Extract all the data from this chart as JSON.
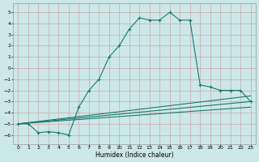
{
  "xlabel": "Humidex (Indice chaleur)",
  "bg_color": "#cce8e8",
  "grid_color": "#ccaaaa",
  "line_color": "#1a7a6e",
  "xlim": [
    -0.5,
    23.5
  ],
  "ylim": [
    -6.8,
    5.8
  ],
  "xticks": [
    0,
    1,
    2,
    3,
    4,
    5,
    6,
    7,
    8,
    9,
    10,
    11,
    12,
    13,
    14,
    15,
    16,
    17,
    18,
    19,
    20,
    21,
    22,
    23
  ],
  "yticks": [
    -6,
    -5,
    -4,
    -3,
    -2,
    -1,
    0,
    1,
    2,
    3,
    4,
    5
  ],
  "line1_x": [
    0,
    1,
    2,
    3,
    4,
    5,
    6,
    7,
    8,
    9,
    10,
    11,
    12,
    13,
    14,
    15,
    16,
    17,
    18,
    19,
    20,
    21,
    22,
    23
  ],
  "line1_y": [
    -5.0,
    -5.0,
    -5.8,
    -5.7,
    -5.8,
    -6.0,
    -3.5,
    -2.0,
    -1.0,
    1.0,
    2.0,
    3.5,
    4.5,
    4.3,
    4.3,
    5.0,
    4.3,
    4.3,
    -1.5,
    -1.7,
    -2.0,
    -2.0,
    -2.0,
    -3.0
  ],
  "line2_x": [
    0,
    23
  ],
  "line2_y": [
    -5.0,
    -2.5
  ],
  "line3_x": [
    0,
    23
  ],
  "line3_y": [
    -5.0,
    -3.0
  ],
  "line4_x": [
    0,
    23
  ],
  "line4_y": [
    -5.0,
    -3.5
  ]
}
